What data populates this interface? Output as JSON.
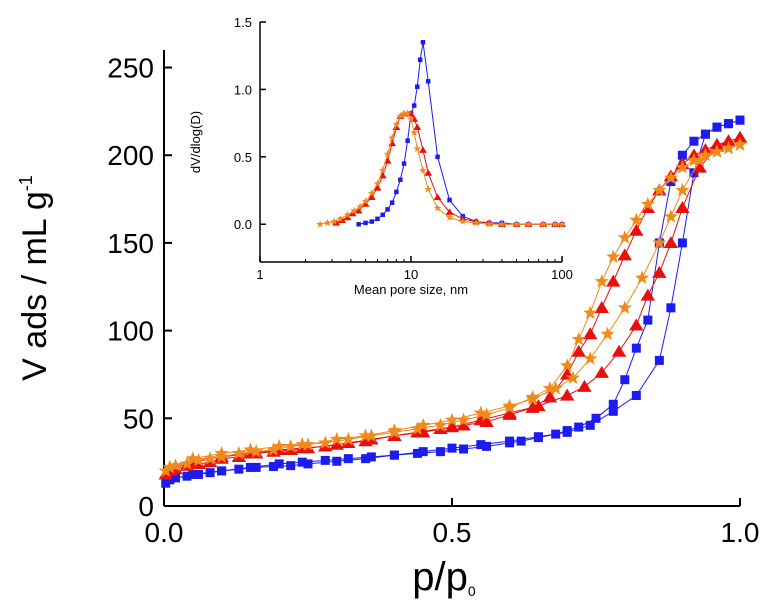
{
  "chart_data": [
    {
      "type": "scatter",
      "title": "",
      "xlabel": "p/p",
      "xlabel_sub": "0",
      "ylabel": "V ads / mL g",
      "ylabel_sup": "-1",
      "xlim": [
        0,
        1
      ],
      "ylim": [
        0,
        260
      ],
      "xticks": [
        "0.0",
        "0.5",
        "1.0"
      ],
      "yticks": [
        "0",
        "50",
        "100",
        "150",
        "200",
        "250"
      ],
      "grid": false,
      "legend": "none",
      "series": [
        {
          "color": "#1c1cf0",
          "marker": "square",
          "adsorption": {
            "x": [
              0.003,
              0.01,
              0.02,
              0.04,
              0.06,
              0.08,
              0.1,
              0.13,
              0.16,
              0.19,
              0.22,
              0.25,
              0.3,
              0.35,
              0.4,
              0.45,
              0.5,
              0.55,
              0.6,
              0.65,
              0.7,
              0.74,
              0.78,
              0.82,
              0.86,
              0.88,
              0.9,
              0.92,
              0.94,
              0.96,
              0.98,
              1.0
            ],
            "y": [
              13,
              15,
              16,
              17,
              18,
              19,
              20,
              21,
              22,
              22.5,
              23,
              24,
              25.5,
              27,
              29,
              31,
              33,
              35,
              37,
              39.5,
              42,
              46,
              54,
              63,
              83,
              113,
              150,
              190,
              212,
              216,
              218,
              220
            ]
          },
          "desorption": {
            "x": [
              1.0,
              0.98,
              0.96,
              0.94,
              0.92,
              0.9,
              0.88,
              0.86,
              0.84,
              0.82,
              0.8,
              0.78,
              0.75,
              0.72,
              0.7,
              0.68,
              0.65,
              0.62,
              0.6,
              0.56,
              0.52,
              0.48,
              0.44,
              0.4,
              0.36,
              0.32,
              0.28,
              0.24,
              0.2,
              0.15,
              0.1,
              0.05,
              0.01
            ],
            "y": [
              220,
              218,
              216,
              212,
              208,
              200,
              185,
              150,
              106,
              90,
              72,
              58,
              50,
              45,
              43,
              41,
              39,
              37,
              36,
              34,
              32.5,
              31,
              30,
              29,
              28,
              27,
              26,
              25,
              24,
              22,
              20,
              18,
              15
            ]
          }
        },
        {
          "color": "#e8100e",
          "marker": "triangle",
          "adsorption": {
            "x": [
              0.003,
              0.01,
              0.02,
              0.04,
              0.06,
              0.08,
              0.1,
              0.13,
              0.16,
              0.19,
              0.22,
              0.25,
              0.3,
              0.35,
              0.4,
              0.45,
              0.5,
              0.55,
              0.6,
              0.65,
              0.7,
              0.73,
              0.76,
              0.79,
              0.82,
              0.84,
              0.86,
              0.88,
              0.9,
              0.93,
              0.96,
              0.98,
              1.0
            ],
            "y": [
              18,
              20,
              21,
              23,
              24,
              25,
              27,
              28,
              30,
              31,
              32,
              33,
              35,
              37,
              40,
              42,
              45,
              49,
              53,
              57,
              63,
              68,
              76,
              88,
              103,
              120,
              133,
              150,
              170,
              193,
              205,
              208,
              210
            ]
          },
          "desorption": {
            "x": [
              1.0,
              0.98,
              0.96,
              0.94,
              0.92,
              0.9,
              0.88,
              0.86,
              0.84,
              0.82,
              0.8,
              0.78,
              0.76,
              0.74,
              0.72,
              0.7,
              0.67,
              0.64,
              0.6,
              0.56,
              0.52,
              0.48,
              0.44,
              0.4,
              0.36,
              0.32,
              0.28,
              0.24,
              0.2,
              0.15,
              0.1,
              0.05,
              0.01
            ],
            "y": [
              210,
              208,
              206,
              203,
              200,
              195,
              188,
              180,
              170,
              157,
              143,
              128,
              113,
              98,
              88,
              75,
              62,
              56,
              52,
              48,
              46,
              44,
              42,
              40,
              38,
              36,
              34,
              33,
              32,
              30,
              28,
              25,
              21
            ]
          }
        },
        {
          "color": "#f08a1c",
          "marker": "star",
          "adsorption": {
            "x": [
              0.003,
              0.01,
              0.02,
              0.04,
              0.06,
              0.08,
              0.1,
              0.13,
              0.16,
              0.19,
              0.22,
              0.25,
              0.3,
              0.35,
              0.4,
              0.45,
              0.5,
              0.55,
              0.6,
              0.64,
              0.68,
              0.71,
              0.74,
              0.77,
              0.8,
              0.83,
              0.86,
              0.88,
              0.9,
              0.93,
              0.96,
              0.98,
              1.0
            ],
            "y": [
              20,
              22,
              23,
              24,
              26,
              27,
              28,
              30,
              31,
              32,
              34,
              35,
              38,
              40,
              43,
              46,
              49,
              53,
              57,
              61,
              67,
              73,
              84,
              98,
              113,
              130,
              150,
              165,
              180,
              197,
              202,
              204,
              206
            ]
          },
          "desorption": {
            "x": [
              1.0,
              0.98,
              0.96,
              0.94,
              0.92,
              0.9,
              0.88,
              0.86,
              0.84,
              0.82,
              0.8,
              0.78,
              0.76,
              0.74,
              0.72,
              0.7,
              0.67,
              0.64,
              0.6,
              0.56,
              0.52,
              0.48,
              0.44,
              0.4,
              0.36,
              0.32,
              0.28,
              0.24,
              0.2,
              0.15,
              0.1,
              0.05,
              0.01
            ],
            "y": [
              206,
              204,
              202,
              200,
              197,
              193,
              187,
              180,
              172,
              163,
              153,
              142,
              128,
              110,
              95,
              80,
              67,
              62,
              56,
              52,
              49,
              46,
              44,
              42,
              40,
              38,
              36,
              35,
              34,
              32,
              30,
              27,
              22
            ]
          }
        }
      ]
    },
    {
      "type": "line",
      "title": "",
      "xlabel": "Mean pore size, nm",
      "ylabel": "dV/dlog(D)",
      "xscale": "log",
      "xlim": [
        1,
        100
      ],
      "ylim": [
        -0.28,
        1.5
      ],
      "xticks": [
        "1",
        "10",
        "100"
      ],
      "yticks": [
        "0.0",
        "0.5",
        "1.0",
        "1.5"
      ],
      "grid": false,
      "legend": "none",
      "series": [
        {
          "color": "#1c1cf0",
          "marker": "square",
          "x": [
            4.5,
            5,
            5.5,
            6,
            6.5,
            7,
            7.5,
            8,
            8.5,
            9,
            9.5,
            10,
            10.5,
            11,
            11.5,
            12,
            13,
            15,
            18,
            22,
            27,
            33,
            40,
            50,
            60,
            75,
            90,
            100
          ],
          "y": [
            0,
            0.01,
            0.02,
            0.04,
            0.07,
            0.11,
            0.16,
            0.24,
            0.33,
            0.45,
            0.62,
            0.82,
            0.88,
            1.02,
            1.22,
            1.35,
            1.06,
            0.5,
            0.18,
            0.06,
            0.02,
            0.01,
            0.01,
            0.0,
            0.0,
            0.0,
            0.0,
            0.0
          ]
        },
        {
          "color": "#e8100e",
          "marker": "triangle",
          "x": [
            3.2,
            3.5,
            3.8,
            4.1,
            4.5,
            5,
            5.5,
            6,
            6.5,
            7,
            7.5,
            8,
            8.5,
            9,
            9.5,
            10,
            10.5,
            11,
            12,
            13,
            15,
            18,
            22,
            27,
            33,
            40,
            50,
            60,
            75,
            90,
            100
          ],
          "y": [
            0.01,
            0.03,
            0.05,
            0.08,
            0.1,
            0.15,
            0.2,
            0.27,
            0.36,
            0.47,
            0.6,
            0.72,
            0.8,
            0.82,
            0.82,
            0.82,
            0.78,
            0.72,
            0.55,
            0.38,
            0.2,
            0.09,
            0.04,
            0.02,
            0.01,
            0.0,
            0.0,
            0.0,
            0.0,
            0.0,
            0.0
          ]
        },
        {
          "color": "#f08a1c",
          "marker": "star",
          "x": [
            2.5,
            2.8,
            3.1,
            3.4,
            3.8,
            4.2,
            4.6,
            5,
            5.5,
            6,
            6.5,
            7,
            7.5,
            8,
            8.5,
            9,
            9.5,
            10,
            10.5,
            11,
            12,
            13,
            15,
            18,
            22,
            27,
            33,
            40,
            50,
            60,
            75,
            90,
            100
          ],
          "y": [
            0.0,
            0.01,
            0.02,
            0.04,
            0.07,
            0.1,
            0.13,
            0.17,
            0.23,
            0.3,
            0.4,
            0.52,
            0.64,
            0.74,
            0.8,
            0.82,
            0.82,
            0.78,
            0.68,
            0.56,
            0.4,
            0.26,
            0.12,
            0.05,
            0.02,
            0.01,
            0.0,
            0.0,
            0.0,
            0.0,
            0.0,
            0.0,
            0.0
          ]
        }
      ]
    }
  ]
}
